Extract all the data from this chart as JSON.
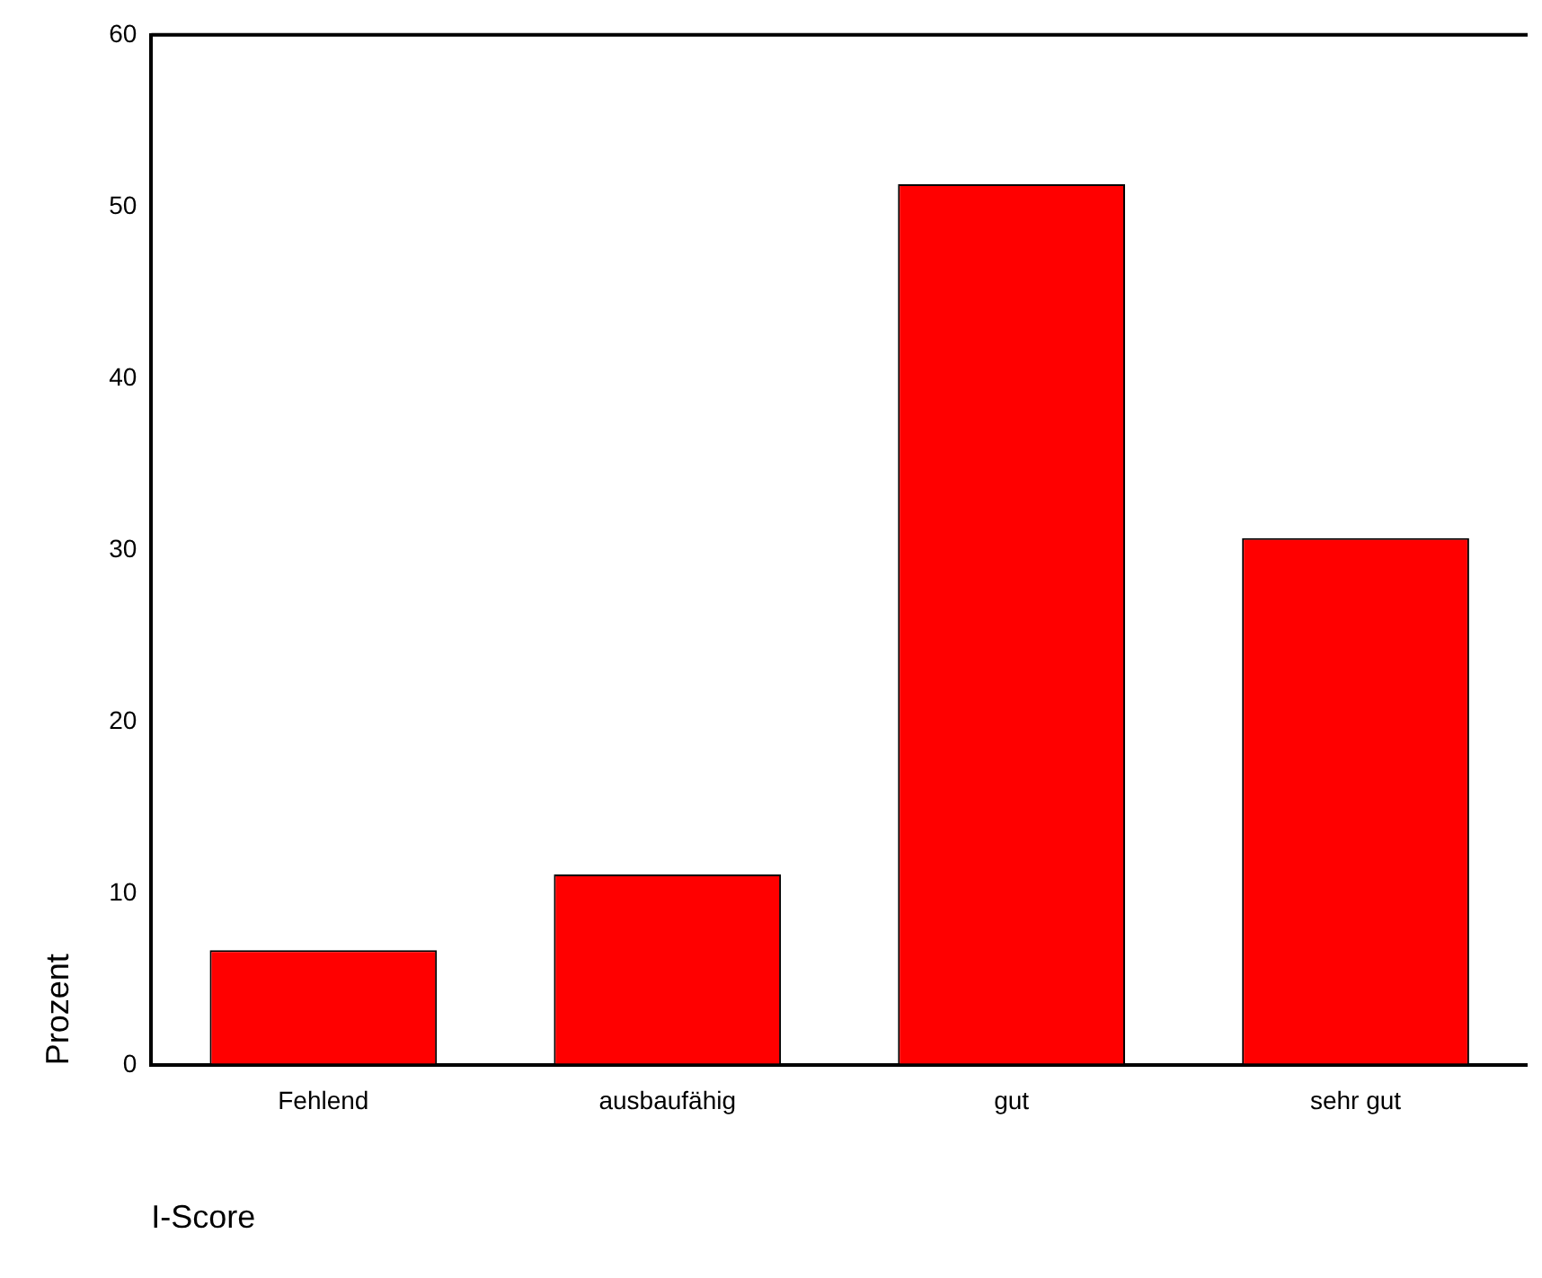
{
  "chart_data": {
    "type": "bar",
    "xlabel": "I-Score",
    "ylabel": "Prozent",
    "categories": [
      "Fehlend",
      "ausbaufähig",
      "gut",
      "sehr gut"
    ],
    "values": [
      6.7,
      11.1,
      51.3,
      30.7
    ],
    "color": "#ff0000",
    "ylim": [
      0,
      60
    ],
    "yticks": [
      0,
      10,
      20,
      30,
      40,
      50,
      60
    ],
    "grid": false,
    "legend": false
  }
}
